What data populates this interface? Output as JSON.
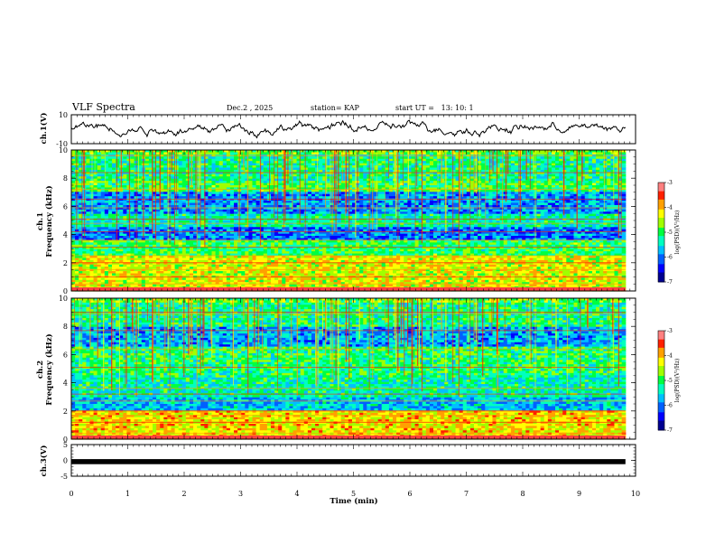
{
  "header": {
    "title": "VLF Spectra",
    "date": "Dec.2 , 2025",
    "station": "station= KAP",
    "start_ut": "start UT =   13: 10: 1"
  },
  "chart_data": [
    {
      "type": "line",
      "name": "ch1-waveform",
      "ylabel": "ch.1(V)",
      "ylim": [
        -10,
        10
      ],
      "yticks": [
        "10",
        "-10"
      ],
      "xlim": [
        0,
        10
      ],
      "data_span_min": [
        0,
        9.82
      ],
      "description_values": "noisy waveform mostly between -5 and +7 V"
    },
    {
      "type": "heatmap",
      "name": "ch1-spectrogram",
      "ylabel": "ch.1 Frequency (kHz)",
      "ylim": [
        0,
        10
      ],
      "yticks": [
        "0",
        "2",
        "4",
        "6",
        "8",
        "10"
      ],
      "xlim": [
        0,
        10
      ],
      "data_span_min": [
        0,
        9.82
      ],
      "band_lines_khz": [
        0.5,
        1.0,
        1.5,
        2.0,
        2.5,
        3.1,
        3.6,
        4.2,
        4.8,
        5.1,
        5.9,
        6.5,
        7.2,
        8.4,
        9.6
      ],
      "colorbar": {
        "min": -7,
        "max": -3,
        "ticks": [
          "-3",
          "-4",
          "-5",
          "-6",
          "-7"
        ],
        "label": "log(PSD)(V²/Hz)"
      }
    },
    {
      "type": "heatmap",
      "name": "ch2-spectrogram",
      "ylabel": "ch.2 Frequency (kHz)",
      "ylim": [
        0,
        10
      ],
      "yticks": [
        "0",
        "2",
        "4",
        "6",
        "8",
        "10"
      ],
      "xlim": [
        0,
        10
      ],
      "data_span_min": [
        0,
        9.82
      ],
      "band_lines_khz": [
        0.4,
        1.2,
        1.7,
        2.0,
        2.7,
        3.2,
        3.6,
        5.1,
        6.4,
        7.7,
        8.9,
        9.0
      ],
      "colorbar": {
        "min": -7,
        "max": -3,
        "ticks": [
          "-3",
          "-4",
          "-5",
          "-6",
          "-7"
        ],
        "label": "log(PSD)(V²/Hz)"
      }
    },
    {
      "type": "line",
      "name": "ch3-waveform",
      "ylabel": "ch.3(V)",
      "ylim": [
        -5,
        5
      ],
      "yticks": [
        "5",
        "0",
        "-5"
      ],
      "xlim": [
        0,
        10
      ],
      "data_span_min": [
        0,
        9.82
      ],
      "band_v": [
        -1.2,
        0.4
      ],
      "xlabel": "Time (min)",
      "xticks": [
        "0",
        "1",
        "2",
        "3",
        "4",
        "5",
        "6",
        "7",
        "8",
        "9",
        "10"
      ]
    }
  ],
  "colors": {
    "colormap": [
      "#000090",
      "#0000ff",
      "#0060ff",
      "#00c0ff",
      "#00ffc0",
      "#00ff40",
      "#a0ff00",
      "#ffff00",
      "#ffa000",
      "#ff2000",
      "#ff8080",
      "#ffffff"
    ],
    "axis": "#000000",
    "trace": "#000000"
  }
}
